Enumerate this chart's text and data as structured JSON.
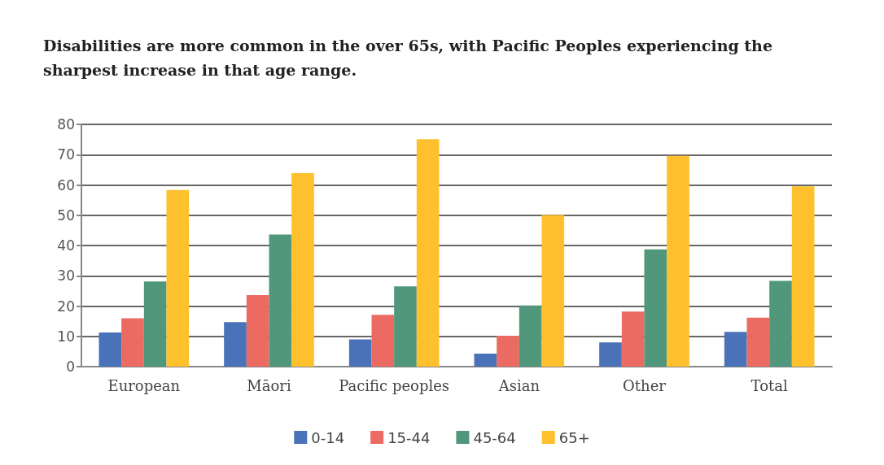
{
  "chart_data": {
    "type": "bar",
    "title": "Disabilities are more common in the over 65s, with Pacific Peoples experiencing the sharpest increase in that age range.",
    "categories": [
      "European",
      "Māori",
      "Pacific peoples",
      "Asian",
      "Other",
      "Total"
    ],
    "series": [
      {
        "name": "0-14",
        "color": "#4a72b8",
        "values": [
          11.3,
          14.7,
          9.0,
          4.3,
          8.0,
          11.5
        ]
      },
      {
        "name": "15-44",
        "color": "#eb6a61",
        "values": [
          16.0,
          23.6,
          17.1,
          10.2,
          18.2,
          16.2
        ]
      },
      {
        "name": "45-64",
        "color": "#50977c",
        "values": [
          28.1,
          43.6,
          26.5,
          20.2,
          38.7,
          28.3
        ]
      },
      {
        "name": "65+",
        "color": "#fec02d",
        "values": [
          58.3,
          63.9,
          75.1,
          50.1,
          69.6,
          59.5
        ]
      }
    ],
    "ylim": [
      0,
      80
    ],
    "yticks": [
      0,
      10,
      20,
      30,
      40,
      50,
      60,
      70,
      80
    ],
    "grid": "y",
    "legend": "bottom"
  }
}
